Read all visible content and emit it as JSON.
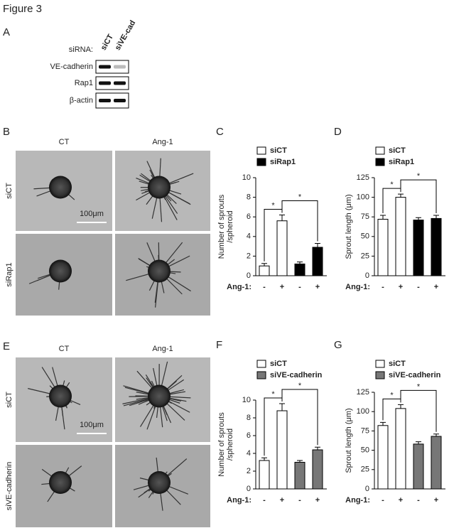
{
  "title": "Figure 3",
  "panel_a": {
    "label": "A",
    "sirna_label": "siRNA:",
    "lanes": [
      "siCT",
      "siVE-cad"
    ],
    "rows": [
      "VE-cadherin",
      "Rap1",
      "β-actin"
    ]
  },
  "panel_b": {
    "label": "B",
    "columns": [
      "CT",
      "Ang-1"
    ],
    "rows": [
      "siCT",
      "siRap1"
    ],
    "scale_bar": "100μm"
  },
  "panel_e": {
    "label": "E",
    "columns": [
      "CT",
      "Ang-1"
    ],
    "rows": [
      "siCT",
      "siVE-cadherin"
    ],
    "scale_bar": "100μm"
  },
  "chart_data": [
    {
      "type": "bar",
      "panel_label": "C",
      "ylabel": [
        "Number of sprouts",
        "/spheroid"
      ],
      "x_label": "Ang-1:",
      "categories": [
        "-",
        "+",
        "-",
        "+"
      ],
      "series": [
        {
          "name": "siCT",
          "color": "#ffffff",
          "values": [
            1.0,
            5.6,
            null,
            null
          ],
          "errors": [
            0.25,
            0.6,
            null,
            null
          ]
        },
        {
          "name": "siRap1",
          "color": "#000000",
          "values": [
            null,
            null,
            1.2,
            2.9
          ],
          "errors": [
            null,
            null,
            0.2,
            0.4
          ]
        }
      ],
      "ylim": [
        0,
        10
      ],
      "yticks": [
        0,
        2,
        4,
        6,
        8,
        10
      ],
      "annotations": [
        "*",
        "*"
      ]
    },
    {
      "type": "bar",
      "panel_label": "D",
      "ylabel": [
        "Sprout length (μm)"
      ],
      "x_label": "Ang-1:",
      "categories": [
        "-",
        "+",
        "-",
        "+"
      ],
      "series": [
        {
          "name": "siCT",
          "color": "#ffffff",
          "values": [
            72,
            100,
            null,
            null
          ],
          "errors": [
            5,
            4,
            null,
            null
          ]
        },
        {
          "name": "siRap1",
          "color": "#000000",
          "values": [
            null,
            null,
            71,
            73
          ],
          "errors": [
            null,
            null,
            3,
            4
          ]
        }
      ],
      "ylim": [
        0,
        125
      ],
      "yticks": [
        0,
        25,
        50,
        75,
        100,
        125
      ],
      "annotations": [
        "*",
        "*"
      ]
    },
    {
      "type": "bar",
      "panel_label": "F",
      "ylabel": [
        "Number of sprouts",
        "/spheroid"
      ],
      "x_label": "Ang-1:",
      "categories": [
        "-",
        "+",
        "-",
        "+"
      ],
      "series": [
        {
          "name": "siCT",
          "color": "#ffffff",
          "values": [
            3.2,
            8.8,
            null,
            null
          ],
          "errors": [
            0.3,
            0.8,
            null,
            null
          ]
        },
        {
          "name": "siVE-cadherin",
          "color": "#777777",
          "values": [
            null,
            null,
            3.0,
            4.4
          ],
          "errors": [
            null,
            null,
            0.2,
            0.3
          ]
        }
      ],
      "ylim": [
        0,
        10
      ],
      "yticks": [
        0,
        2,
        4,
        6,
        8,
        10
      ],
      "annotations": [
        "*",
        "*"
      ]
    },
    {
      "type": "bar",
      "panel_label": "G",
      "ylabel": [
        "Sprout length (μm)"
      ],
      "x_label": "Ang-1:",
      "categories": [
        "-",
        "+",
        "-",
        "+"
      ],
      "series": [
        {
          "name": "siCT",
          "color": "#ffffff",
          "values": [
            82,
            104,
            null,
            null
          ],
          "errors": [
            4,
            5,
            null,
            null
          ]
        },
        {
          "name": "siVE-cadherin",
          "color": "#777777",
          "values": [
            null,
            null,
            58,
            68
          ],
          "errors": [
            null,
            null,
            3,
            3
          ]
        }
      ],
      "ylim": [
        0,
        125
      ],
      "yticks": [
        0,
        25,
        50,
        75,
        100,
        125
      ],
      "annotations": [
        "*",
        "*"
      ]
    }
  ]
}
